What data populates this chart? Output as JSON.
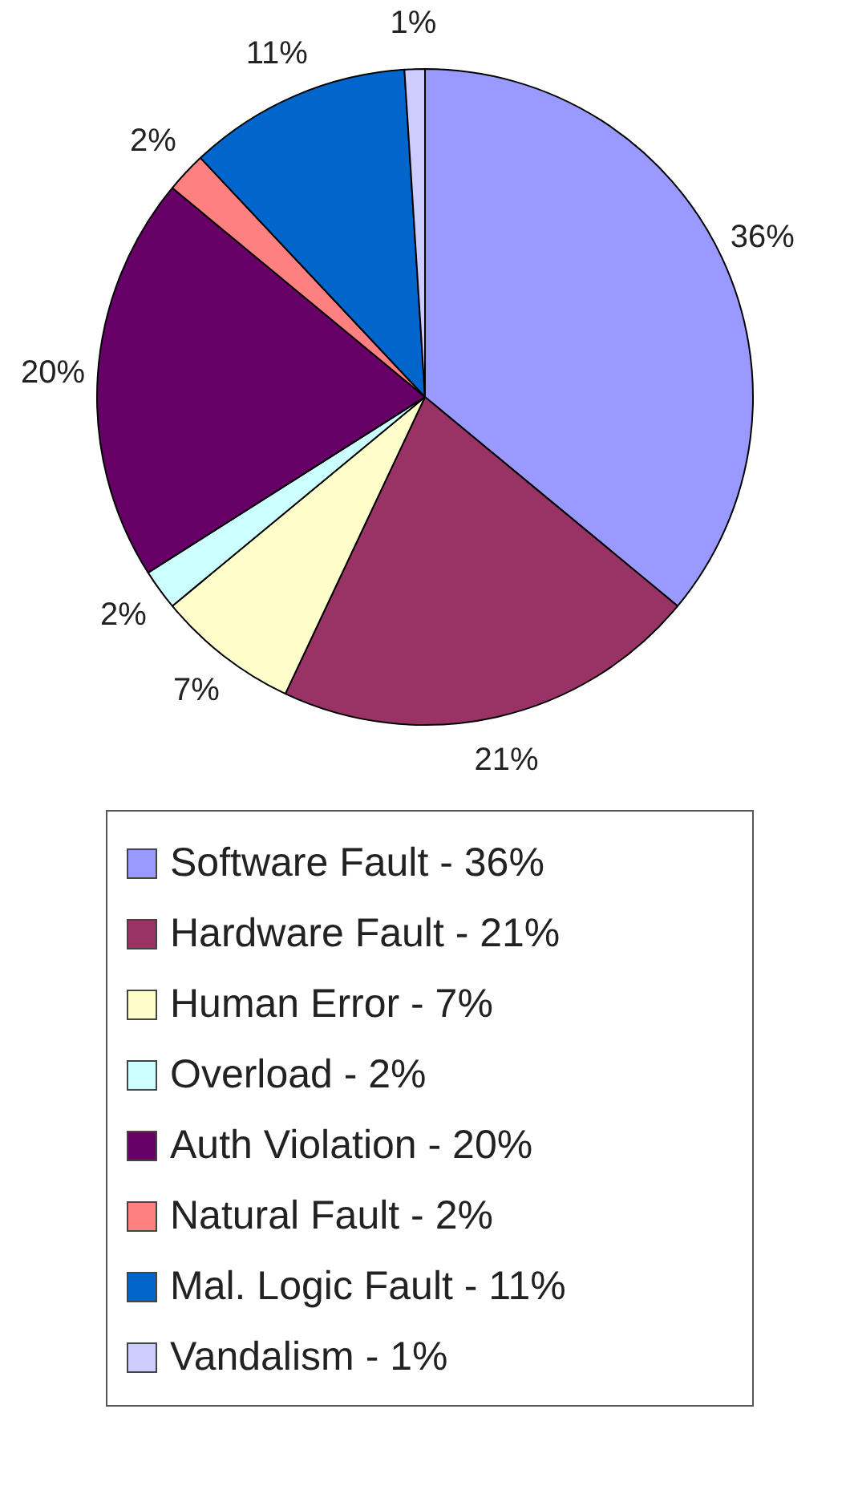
{
  "chart_data": {
    "type": "pie",
    "categories": [
      "Software Fault - 36%",
      "Hardware Fault - 21%",
      "Human Error - 7%",
      "Overload - 2%",
      "Auth Violation - 20%",
      "Natural Fault - 2%",
      "Mal. Logic Fault - 11%",
      "Vandalism - 1%"
    ],
    "values": [
      36,
      21,
      7,
      2,
      20,
      2,
      11,
      1
    ],
    "value_labels": [
      "36%",
      "21%",
      "7%",
      "2%",
      "20%",
      "2%",
      "11%",
      "1%"
    ],
    "colors": [
      "#9999ff",
      "#993366",
      "#ffffcc",
      "#ccffff",
      "#660066",
      "#ff8080",
      "#0066cc",
      "#ccccff"
    ],
    "legend": "bottom"
  }
}
